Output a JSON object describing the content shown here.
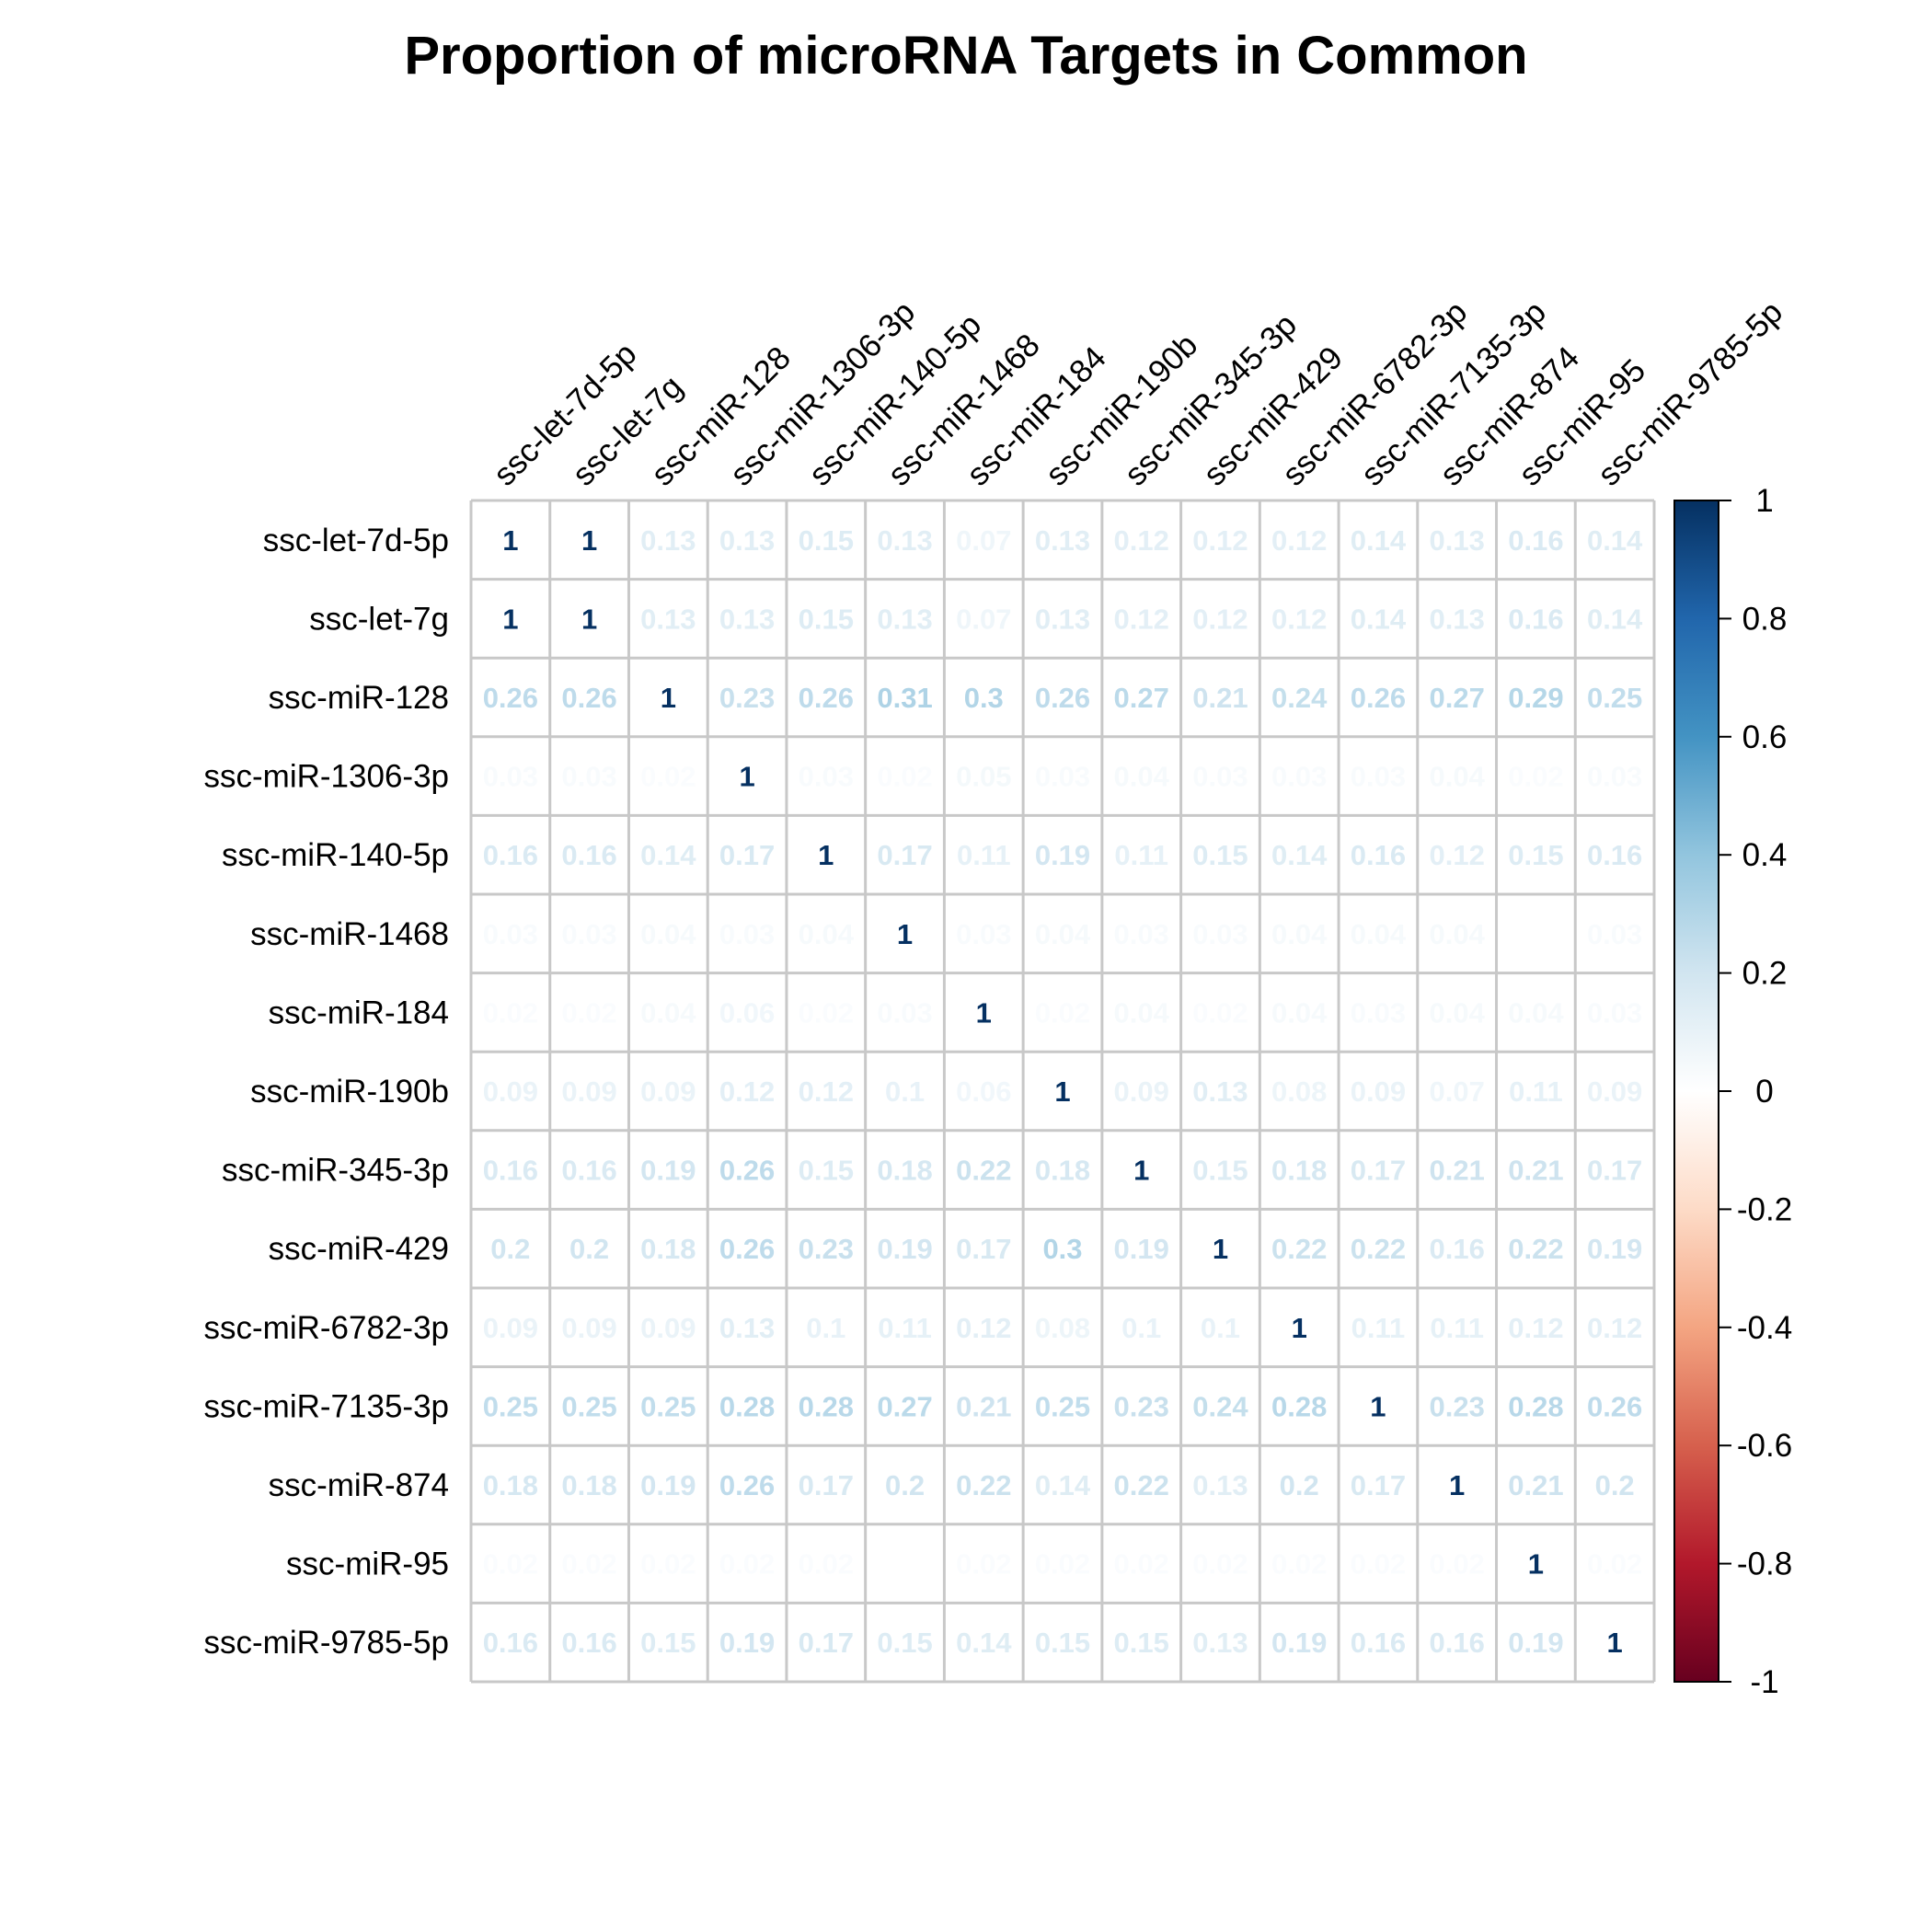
{
  "chart_data": {
    "type": "heatmap",
    "title": "Proportion of microRNA Targets in Common",
    "row_labels": [
      "ssc-let-7d-5p",
      "ssc-let-7g",
      "ssc-miR-128",
      "ssc-miR-1306-3p",
      "ssc-miR-140-5p",
      "ssc-miR-1468",
      "ssc-miR-184",
      "ssc-miR-190b",
      "ssc-miR-345-3p",
      "ssc-miR-429",
      "ssc-miR-6782-3p",
      "ssc-miR-7135-3p",
      "ssc-miR-874",
      "ssc-miR-95",
      "ssc-miR-9785-5p"
    ],
    "col_labels": [
      "ssc-let-7d-5p",
      "ssc-let-7g",
      "ssc-miR-128",
      "ssc-miR-1306-3p",
      "ssc-miR-140-5p",
      "ssc-miR-1468",
      "ssc-miR-184",
      "ssc-miR-190b",
      "ssc-miR-345-3p",
      "ssc-miR-429",
      "ssc-miR-6782-3p",
      "ssc-miR-7135-3p",
      "ssc-miR-874",
      "ssc-miR-95",
      "ssc-miR-9785-5p"
    ],
    "values": [
      [
        1,
        1,
        0.13,
        0.13,
        0.15,
        0.13,
        0.07,
        0.13,
        0.12,
        0.12,
        0.12,
        0.14,
        0.13,
        0.16,
        0.14
      ],
      [
        1,
        1,
        0.13,
        0.13,
        0.15,
        0.13,
        0.07,
        0.13,
        0.12,
        0.12,
        0.12,
        0.14,
        0.13,
        0.16,
        0.14
      ],
      [
        0.26,
        0.26,
        1,
        0.23,
        0.26,
        0.31,
        0.3,
        0.26,
        0.27,
        0.21,
        0.24,
        0.26,
        0.27,
        0.29,
        0.25
      ],
      [
        0.03,
        0.03,
        0.02,
        1,
        0.03,
        0.02,
        0.05,
        0.03,
        0.04,
        0.03,
        0.03,
        0.03,
        0.04,
        0.02,
        0.03
      ],
      [
        0.16,
        0.16,
        0.14,
        0.17,
        1,
        0.17,
        0.11,
        0.19,
        0.11,
        0.15,
        0.14,
        0.16,
        0.12,
        0.15,
        0.16
      ],
      [
        0.03,
        0.03,
        0.04,
        0.03,
        0.04,
        1,
        0.03,
        0.04,
        0.03,
        0.03,
        0.04,
        0.04,
        0.04,
        0,
        0.03
      ],
      [
        0.02,
        0.02,
        0.04,
        0.06,
        0.02,
        0.03,
        1,
        0.02,
        0.04,
        0.02,
        0.04,
        0.03,
        0.04,
        0.04,
        0.03
      ],
      [
        0.09,
        0.09,
        0.09,
        0.12,
        0.12,
        0.1,
        0.06,
        1,
        0.09,
        0.13,
        0.08,
        0.09,
        0.07,
        0.11,
        0.09
      ],
      [
        0.16,
        0.16,
        0.19,
        0.26,
        0.15,
        0.18,
        0.22,
        0.18,
        1,
        0.15,
        0.18,
        0.17,
        0.21,
        0.21,
        0.17
      ],
      [
        0.2,
        0.2,
        0.18,
        0.26,
        0.23,
        0.19,
        0.17,
        0.3,
        0.19,
        1,
        0.22,
        0.22,
        0.16,
        0.22,
        0.19
      ],
      [
        0.09,
        0.09,
        0.09,
        0.13,
        0.1,
        0.11,
        0.12,
        0.08,
        0.1,
        0.1,
        1,
        0.11,
        0.11,
        0.12,
        0.12
      ],
      [
        0.25,
        0.25,
        0.25,
        0.28,
        0.28,
        0.27,
        0.21,
        0.25,
        0.23,
        0.24,
        0.28,
        1,
        0.23,
        0.28,
        0.26
      ],
      [
        0.18,
        0.18,
        0.19,
        0.26,
        0.17,
        0.2,
        0.22,
        0.14,
        0.22,
        0.13,
        0.2,
        0.17,
        1,
        0.21,
        0.2
      ],
      [
        0.02,
        0.02,
        0.02,
        0.02,
        0.02,
        0,
        0.02,
        0.02,
        0.02,
        0.02,
        0.02,
        0.02,
        0.02,
        1,
        0.02
      ],
      [
        0.16,
        0.16,
        0.15,
        0.19,
        0.17,
        0.15,
        0.14,
        0.15,
        0.15,
        0.13,
        0.19,
        0.16,
        0.16,
        0.19,
        1
      ]
    ],
    "colorbar": {
      "range": [
        -1,
        1
      ],
      "ticks": [
        1,
        0.8,
        0.6,
        0.4,
        0.2,
        0,
        -0.2,
        -0.4,
        -0.6,
        -0.8,
        -1
      ],
      "tick_labels": [
        "1",
        "0.8",
        "0.6",
        "0.4",
        "0.2",
        "0",
        "-0.2",
        "-0.4",
        "-0.6",
        "-0.8",
        "-1"
      ],
      "palette": [
        "#67001F",
        "#B2182B",
        "#D6604D",
        "#F4A582",
        "#FDDBC7",
        "#FFFFFF",
        "#D1E5F0",
        "#92C5DE",
        "#4393C3",
        "#2166AC",
        "#053061"
      ]
    },
    "grid": true,
    "grid_color": "#c8c8c8",
    "legend_placement": "right"
  }
}
